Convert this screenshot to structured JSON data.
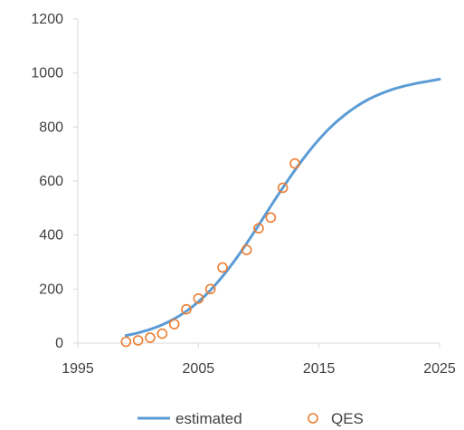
{
  "chart_data": {
    "type": "scatter",
    "xlim": [
      1995,
      2025
    ],
    "ylim": [
      0,
      1200
    ],
    "x_ticks": [
      "1995",
      "2005",
      "2015",
      "2025"
    ],
    "y_ticks": [
      "0",
      "200",
      "400",
      "600",
      "800",
      "1000",
      "1200"
    ],
    "grid": false,
    "legend_position": "bottom",
    "series": [
      {
        "name": "estimated",
        "kind": "line",
        "color": "#5B9BD5",
        "x": [
          1999,
          2000,
          2001,
          2002,
          2003,
          2004,
          2005,
          2006,
          2007,
          2008,
          2009,
          2010,
          2011,
          2012,
          2013,
          2014,
          2015,
          2016,
          2017,
          2018,
          2019,
          2020,
          2021,
          2022,
          2023,
          2024,
          2025
        ],
        "y": [
          28,
          38,
          51,
          68,
          90,
          118,
          153,
          196,
          247,
          305,
          369,
          437,
          507,
          575,
          640,
          700,
          754,
          801,
          840,
          873,
          900,
          921,
          938,
          951,
          961,
          969,
          977
        ]
      },
      {
        "name": "QES",
        "kind": "scatter",
        "color": "#ED7D31",
        "x": [
          1999,
          2000,
          2001,
          2002,
          2003,
          2004,
          2005,
          2006,
          2007,
          2009,
          2010,
          2011,
          2012,
          2013
        ],
        "y": [
          5,
          10,
          20,
          35,
          70,
          125,
          165,
          200,
          280,
          345,
          425,
          465,
          575,
          665
        ]
      }
    ]
  }
}
